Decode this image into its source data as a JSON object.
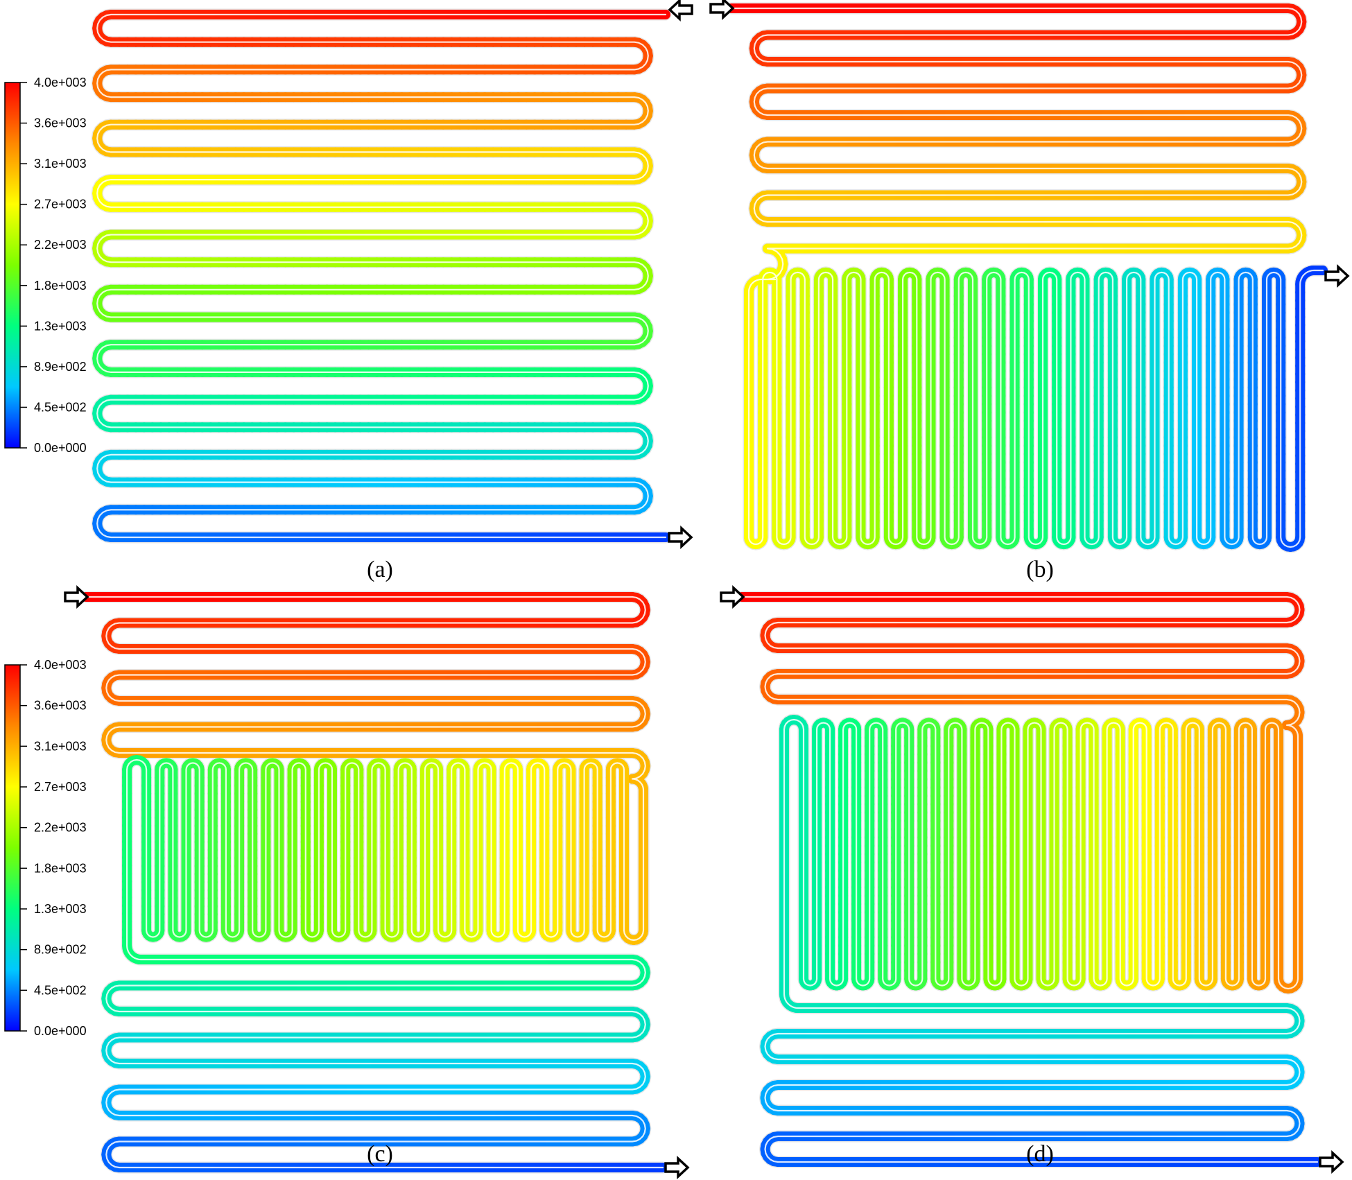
{
  "figure": {
    "panels": [
      {
        "id": "a",
        "caption": "(a)",
        "layout": "serpentine",
        "rows": 20
      },
      {
        "id": "b",
        "caption": "(b)",
        "layout": "serpentine-upper-plus-vertical",
        "rows": 9,
        "vertical_loops": 19
      },
      {
        "id": "c",
        "caption": "(c)",
        "layout": "serpentine-sandwich",
        "rows_top": 6,
        "vertical_loops": 19,
        "rows_bottom": 6
      },
      {
        "id": "d",
        "caption": "(d)",
        "layout": "serpentine-sandwich",
        "rows_top": 4,
        "vertical_loops": 19,
        "rows_bottom": 4
      }
    ],
    "colorbar": {
      "ticks": [
        "4.0e+003",
        "3.6e+003",
        "3.1e+003",
        "2.7e+003",
        "2.2e+003",
        "1.8e+003",
        "1.3e+003",
        "8.9e+002",
        "4.5e+002",
        "0.0e+000"
      ],
      "min": 0,
      "max": 4000,
      "colors": [
        "#0000ff",
        "#00c8ff",
        "#00ff80",
        "#7cff00",
        "#ffff00",
        "#ff8800",
        "#ff0000"
      ]
    },
    "arrow_icon": "outline-arrow-icon"
  }
}
